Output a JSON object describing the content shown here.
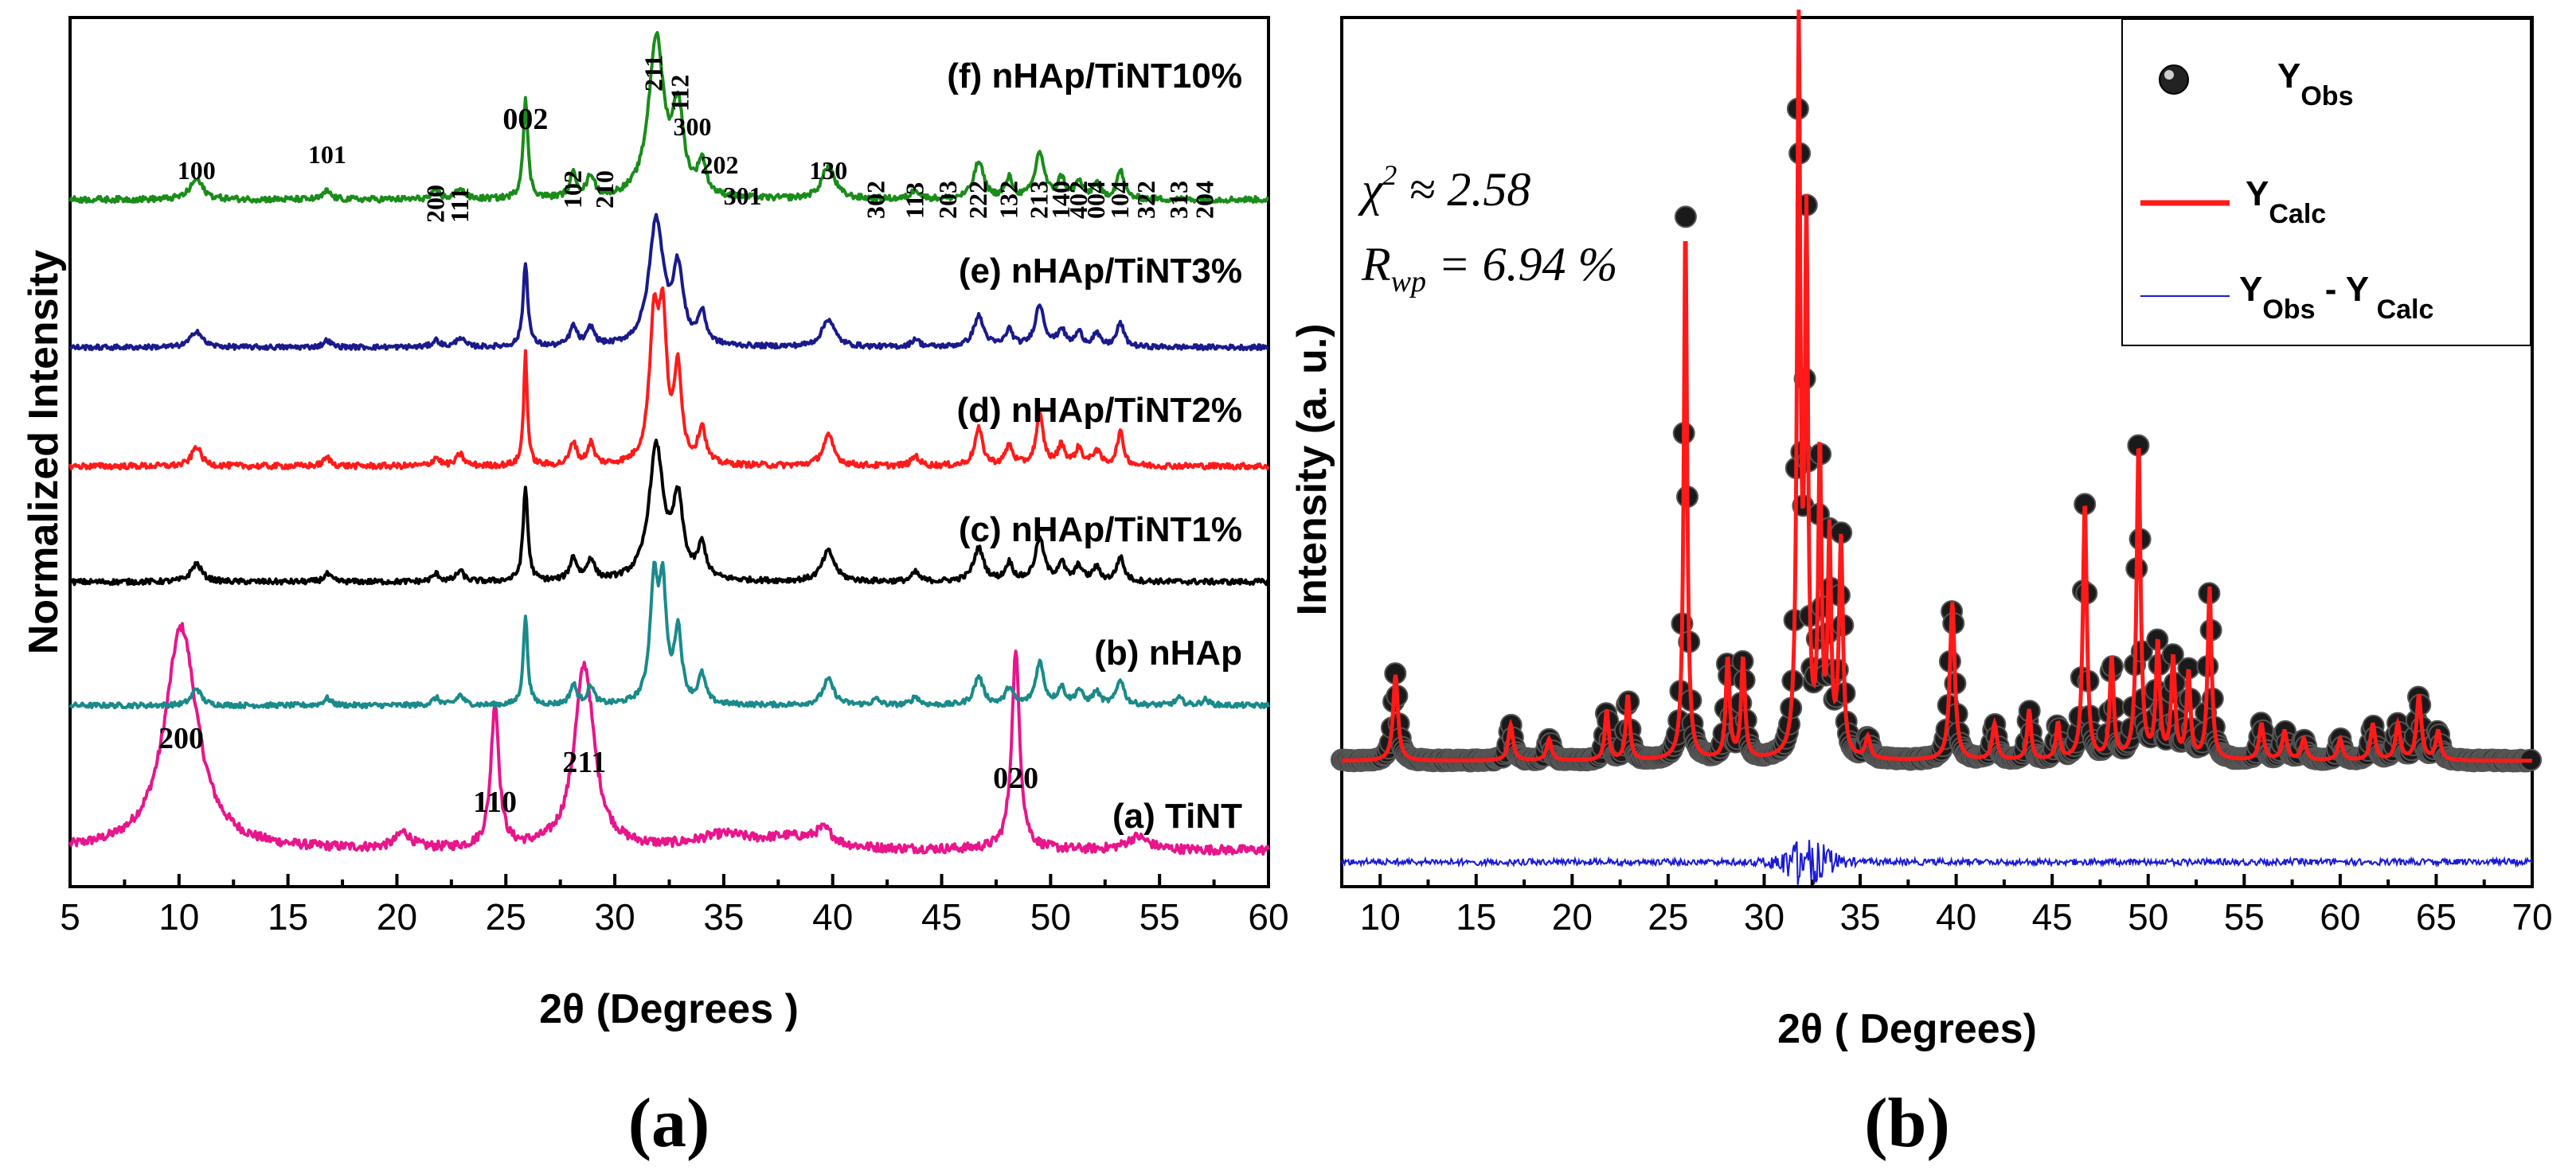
{
  "chart_data": [
    {
      "type": "line",
      "panel_label": "(a)",
      "xlabel": "2θ (Degrees )",
      "ylabel": "Normalized Intensity",
      "xlim": [
        5,
        60
      ],
      "xticks": [
        5,
        10,
        15,
        20,
        25,
        30,
        35,
        40,
        45,
        50,
        55,
        60
      ],
      "series": [
        {
          "name": "(a) TiNT",
          "color": "#e8158c",
          "offset": 0,
          "base": 0.05,
          "peaks": [
            [
              10.1,
              0.85,
              0.9
            ],
            [
              24.5,
              0.55,
              0.22
            ],
            [
              28.6,
              0.7,
              0.55
            ],
            [
              48.4,
              0.75,
              0.22
            ],
            [
              20.3,
              0.06,
              0.4
            ],
            [
              35,
              0.05,
              1.5
            ],
            [
              38,
              0.04,
              1.5
            ],
            [
              39.6,
              0.06,
              0.5
            ],
            [
              54,
              0.05,
              0.6
            ]
          ]
        },
        {
          "name": "(b) nHAp",
          "color": "#1a8a8a",
          "offset": 1,
          "base": 0.02,
          "peaks": [
            [
              10.8,
              0.12,
              0.25
            ],
            [
              16.8,
              0.05,
              0.2
            ],
            [
              21.8,
              0.05,
              0.2
            ],
            [
              22.9,
              0.07,
              0.2
            ],
            [
              25.9,
              0.62,
              0.12
            ],
            [
              28.1,
              0.14,
              0.18
            ],
            [
              28.9,
              0.13,
              0.18
            ],
            [
              31.8,
              0.82,
              0.22
            ],
            [
              32.2,
              0.75,
              0.2
            ],
            [
              32.9,
              0.5,
              0.2
            ],
            [
              34.0,
              0.2,
              0.2
            ],
            [
              39.8,
              0.18,
              0.3
            ],
            [
              42.0,
              0.04,
              0.2
            ],
            [
              43.8,
              0.06,
              0.2
            ],
            [
              46.7,
              0.2,
              0.25
            ],
            [
              48.1,
              0.12,
              0.2
            ],
            [
              49.5,
              0.3,
              0.22
            ],
            [
              50.5,
              0.12,
              0.2
            ],
            [
              51.3,
              0.1,
              0.2
            ],
            [
              52.1,
              0.09,
              0.2
            ],
            [
              53.2,
              0.18,
              0.2
            ],
            [
              55.9,
              0.05,
              0.2
            ],
            [
              57.1,
              0.04,
              0.2
            ]
          ]
        },
        {
          "name": "(c) nHAp/TiNT1%",
          "color": "#000000",
          "offset": 2,
          "base": 0.02,
          "peaks": [
            [
              10.8,
              0.12,
              0.3
            ],
            [
              16.8,
              0.05,
              0.2
            ],
            [
              21.8,
              0.05,
              0.2
            ],
            [
              22.9,
              0.07,
              0.2
            ],
            [
              25.9,
              0.62,
              0.13
            ],
            [
              28.1,
              0.15,
              0.2
            ],
            [
              28.9,
              0.14,
              0.2
            ],
            [
              31.9,
              0.88,
              0.4
            ],
            [
              32.9,
              0.5,
              0.28
            ],
            [
              34.0,
              0.22,
              0.22
            ],
            [
              39.8,
              0.2,
              0.35
            ],
            [
              43.8,
              0.06,
              0.2
            ],
            [
              46.7,
              0.22,
              0.28
            ],
            [
              48.1,
              0.12,
              0.2
            ],
            [
              49.5,
              0.28,
              0.25
            ],
            [
              50.5,
              0.12,
              0.2
            ],
            [
              51.3,
              0.1,
              0.2
            ],
            [
              52.1,
              0.09,
              0.2
            ],
            [
              53.2,
              0.16,
              0.2
            ]
          ]
        },
        {
          "name": "(d) nHAp/TiNT2%",
          "color": "#ff1a1a",
          "offset": 3,
          "base": 0.02,
          "peaks": [
            [
              10.8,
              0.12,
              0.25
            ],
            [
              16.8,
              0.05,
              0.2
            ],
            [
              21.8,
              0.05,
              0.2
            ],
            [
              22.9,
              0.07,
              0.2
            ],
            [
              25.9,
              0.68,
              0.1
            ],
            [
              28.1,
              0.14,
              0.18
            ],
            [
              28.9,
              0.13,
              0.18
            ],
            [
              31.8,
              0.82,
              0.25
            ],
            [
              32.2,
              0.78,
              0.22
            ],
            [
              32.9,
              0.55,
              0.2
            ],
            [
              34.0,
              0.22,
              0.2
            ],
            [
              39.8,
              0.18,
              0.3
            ],
            [
              43.8,
              0.06,
              0.2
            ],
            [
              46.7,
              0.22,
              0.22
            ],
            [
              48.1,
              0.12,
              0.2
            ],
            [
              49.5,
              0.3,
              0.2
            ],
            [
              50.5,
              0.12,
              0.2
            ],
            [
              51.3,
              0.1,
              0.2
            ],
            [
              52.1,
              0.09,
              0.2
            ],
            [
              53.2,
              0.2,
              0.18
            ]
          ]
        },
        {
          "name": "(e) nHAp/TiNT3%",
          "color": "#1a1a8c",
          "offset": 4,
          "base": 0.02,
          "peaks": [
            [
              10.8,
              0.12,
              0.3
            ],
            [
              16.8,
              0.05,
              0.2
            ],
            [
              21.8,
              0.05,
              0.2
            ],
            [
              22.9,
              0.07,
              0.2
            ],
            [
              25.9,
              0.6,
              0.13
            ],
            [
              28.1,
              0.14,
              0.2
            ],
            [
              28.9,
              0.13,
              0.2
            ],
            [
              31.9,
              0.9,
              0.4
            ],
            [
              32.9,
              0.52,
              0.28
            ],
            [
              34.0,
              0.22,
              0.22
            ],
            [
              39.8,
              0.2,
              0.35
            ],
            [
              43.8,
              0.06,
              0.2
            ],
            [
              46.7,
              0.22,
              0.28
            ],
            [
              48.1,
              0.12,
              0.2
            ],
            [
              49.5,
              0.3,
              0.25
            ],
            [
              50.5,
              0.12,
              0.2
            ],
            [
              51.3,
              0.1,
              0.2
            ],
            [
              52.1,
              0.09,
              0.2
            ],
            [
              53.2,
              0.17,
              0.2
            ]
          ]
        },
        {
          "name": "(f) nHAp/TiNT10%",
          "color": "#1a8c1a",
          "offset": 5,
          "base": 0.02,
          "peaks": [
            [
              10.8,
              0.12,
              0.35
            ],
            [
              16.8,
              0.05,
              0.2
            ],
            [
              21.8,
              0.05,
              0.2
            ],
            [
              22.9,
              0.07,
              0.2
            ],
            [
              25.9,
              0.6,
              0.13
            ],
            [
              28.1,
              0.14,
              0.2
            ],
            [
              28.9,
              0.13,
              0.2
            ],
            [
              31.9,
              0.95,
              0.42
            ],
            [
              32.9,
              0.5,
              0.3
            ],
            [
              34.0,
              0.2,
              0.22
            ],
            [
              39.8,
              0.2,
              0.35
            ],
            [
              43.8,
              0.06,
              0.2
            ],
            [
              46.7,
              0.22,
              0.28
            ],
            [
              48.1,
              0.12,
              0.2
            ],
            [
              49.5,
              0.28,
              0.25
            ],
            [
              50.5,
              0.12,
              0.2
            ],
            [
              51.3,
              0.1,
              0.2
            ],
            [
              52.1,
              0.09,
              0.2
            ],
            [
              53.2,
              0.17,
              0.2
            ]
          ]
        }
      ],
      "hkl_tint": [
        {
          "label": "200",
          "x": 10.1
        },
        {
          "label": "110",
          "x": 24.5
        },
        {
          "label": "211",
          "x": 28.6
        },
        {
          "label": "020",
          "x": 48.4
        }
      ],
      "hkl_hap": [
        {
          "label": "100",
          "x": 10.8
        },
        {
          "label": "101",
          "x": 16.8
        },
        {
          "label": "200",
          "x": 21.8
        },
        {
          "label": "111",
          "x": 22.9
        },
        {
          "label": "002",
          "x": 25.9
        },
        {
          "label": "102",
          "x": 28.1
        },
        {
          "label": "210",
          "x": 28.9
        },
        {
          "label": "211",
          "x": 31.8
        },
        {
          "label": "112",
          "x": 32.2
        },
        {
          "label": "300",
          "x": 32.9
        },
        {
          "label": "202",
          "x": 34.0
        },
        {
          "label": "301",
          "x": 35.5
        },
        {
          "label": "130",
          "x": 39.8
        },
        {
          "label": "302",
          "x": 42.0
        },
        {
          "label": "113",
          "x": 43.8
        },
        {
          "label": "203",
          "x": 45.3
        },
        {
          "label": "222",
          "x": 46.7
        },
        {
          "label": "132",
          "x": 48.1
        },
        {
          "label": "213",
          "x": 49.5
        },
        {
          "label": "140",
          "x": 50.5
        },
        {
          "label": "402",
          "x": 51.3
        },
        {
          "label": "004",
          "x": 52.1
        },
        {
          "label": "104",
          "x": 53.2
        },
        {
          "label": "322",
          "x": 54.4
        },
        {
          "label": "313",
          "x": 55.9
        },
        {
          "label": "204",
          "x": 57.1
        }
      ]
    },
    {
      "type": "scatter",
      "panel_label": "(b)",
      "xlabel": "2θ ( Degrees)",
      "ylabel": "Intensity (a. u.)",
      "xlim": [
        8,
        70
      ],
      "xticks": [
        10,
        15,
        20,
        25,
        30,
        35,
        40,
        45,
        50,
        55,
        60,
        65,
        70
      ],
      "stats": {
        "chi": "χ",
        "chi_sup": "2",
        "chi_val": " ≈ 2.58",
        "r": "R",
        "r_sub": "wp",
        "r_val": " = 6.94 %"
      },
      "legend": [
        {
          "text": "Y",
          "sub": "Obs",
          "color": "#000000",
          "style": "marker"
        },
        {
          "text": "Y",
          "sub": "Calc",
          "color": "#ff1a1a",
          "style": "line"
        },
        {
          "text": "Y",
          "sub": "Obs",
          "text2": " - Y",
          "sub2": " Calc",
          "color": "#1a1ad6",
          "style": "thin-line"
        }
      ],
      "peaks": [
        [
          10.8,
          0.12,
          0.15
        ],
        [
          16.8,
          0.05,
          0.15
        ],
        [
          18.8,
          0.03,
          0.15
        ],
        [
          21.8,
          0.07,
          0.12
        ],
        [
          22.9,
          0.09,
          0.12
        ],
        [
          25.9,
          0.75,
          0.1
        ],
        [
          28.1,
          0.14,
          0.12
        ],
        [
          28.9,
          0.14,
          0.12
        ],
        [
          31.8,
          1.0,
          0.1
        ],
        [
          32.2,
          0.72,
          0.1
        ],
        [
          32.9,
          0.42,
          0.1
        ],
        [
          33.4,
          0.3,
          0.1
        ],
        [
          34.0,
          0.3,
          0.12
        ],
        [
          35.4,
          0.03,
          0.15
        ],
        [
          39.8,
          0.22,
          0.15
        ],
        [
          42.0,
          0.05,
          0.15
        ],
        [
          43.8,
          0.07,
          0.12
        ],
        [
          45.3,
          0.05,
          0.12
        ],
        [
          46.7,
          0.36,
          0.12
        ],
        [
          48.1,
          0.14,
          0.12
        ],
        [
          49.5,
          0.44,
          0.12
        ],
        [
          50.5,
          0.16,
          0.12
        ],
        [
          51.3,
          0.14,
          0.12
        ],
        [
          52.1,
          0.12,
          0.12
        ],
        [
          53.2,
          0.24,
          0.12
        ],
        [
          55.9,
          0.05,
          0.15
        ],
        [
          57.1,
          0.04,
          0.15
        ],
        [
          58.1,
          0.03,
          0.15
        ],
        [
          60.0,
          0.03,
          0.15
        ],
        [
          61.7,
          0.05,
          0.15
        ],
        [
          63.0,
          0.05,
          0.15
        ],
        [
          64.1,
          0.09,
          0.15
        ],
        [
          65.1,
          0.04,
          0.15
        ]
      ],
      "background": 0.06
    }
  ]
}
